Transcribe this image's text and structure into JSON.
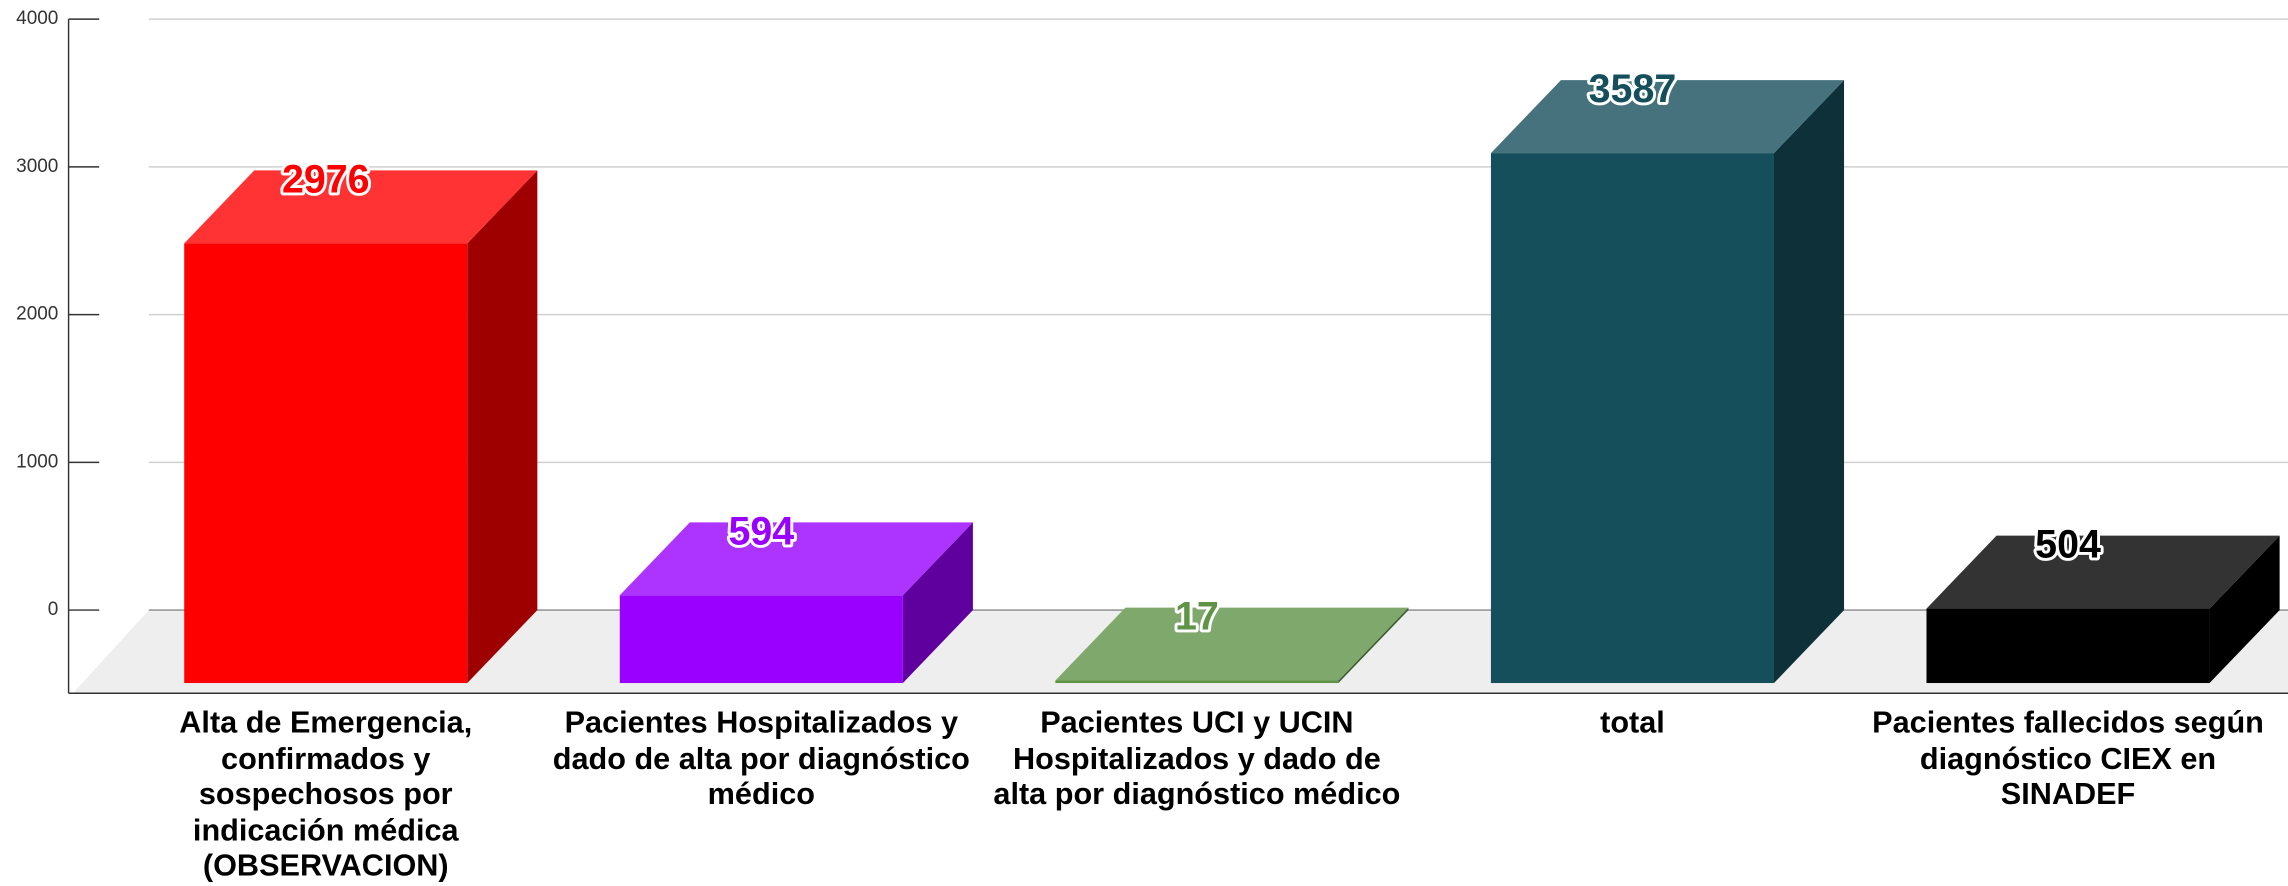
{
  "chart_data": {
    "type": "bar3d",
    "categories": [
      "Alta de Emergencia, confirmados y sospechosos  por indicación médica (OBSERVACION)",
      "Pacientes Hospitalizados y dado de alta por diagnóstico médico",
      "Pacientes UCI y UCIN Hospitalizados y dado de alta por diagnóstico médico",
      "total",
      "Pacientes fallecidos según diagnóstico CIEX en SINADEF"
    ],
    "values": [
      2976,
      594,
      17,
      3587,
      504
    ],
    "colors": [
      "#ff0000",
      "#9900ff",
      "#5f9447",
      "#164f5c",
      "#000000"
    ],
    "ylim": [
      0,
      4000
    ],
    "yticks": [
      0,
      1000,
      2000,
      3000,
      4000
    ],
    "grid": true
  }
}
